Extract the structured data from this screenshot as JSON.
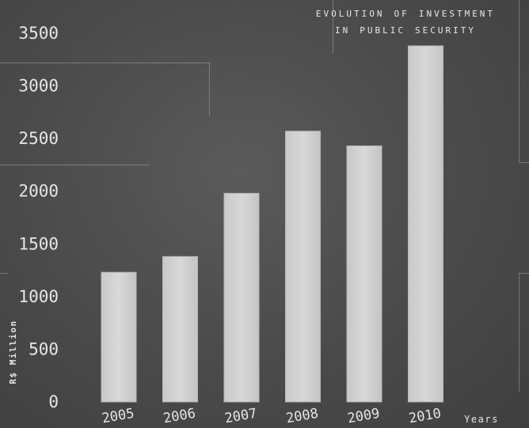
{
  "chart_data": {
    "type": "bar",
    "title_lines": [
      "Evolution of investment",
      "in public security"
    ],
    "categories": [
      "2005",
      "2006",
      "2007",
      "2008",
      "2009",
      "2010"
    ],
    "values": [
      1230,
      1380,
      1980,
      2570,
      2430,
      3380
    ],
    "ylabel": "R$ Million",
    "xlabel": "Years",
    "ylim": [
      0,
      3500
    ],
    "yticks": [
      0,
      500,
      1000,
      1500,
      2000,
      2500,
      3000,
      3500
    ],
    "grid": true,
    "colors": {
      "bar": "#d4d4d4",
      "grid": "#8a8a8a",
      "text": "#e6e6e6",
      "background": "#4b4b4b"
    }
  }
}
